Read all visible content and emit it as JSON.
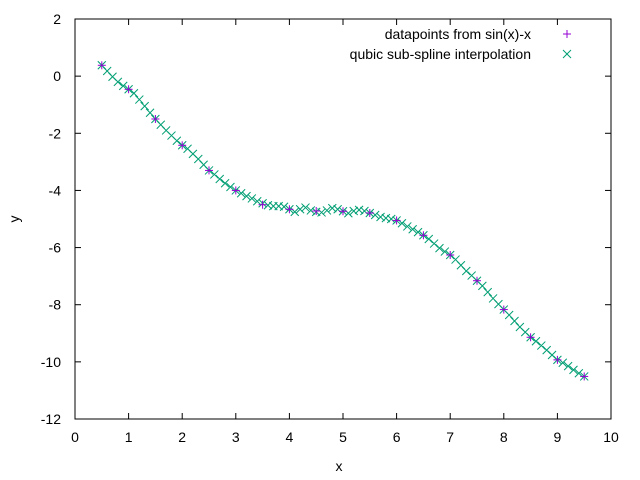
{
  "chart_data": {
    "type": "scatter",
    "title": "",
    "xlabel": "x",
    "ylabel": "y",
    "xlim": [
      0,
      10
    ],
    "ylim": [
      -12,
      2
    ],
    "xticks": [
      "0",
      "1",
      "2",
      "3",
      "4",
      "5",
      "6",
      "7",
      "8",
      "9",
      "10"
    ],
    "yticks": [
      "2",
      "0",
      "-2",
      "-4",
      "-6",
      "-8",
      "-10",
      "-12"
    ],
    "grid": false,
    "legend_position": "top-right",
    "series": [
      {
        "name": "datapoints from sin(x)-x",
        "marker": "plus",
        "color": "#9400d3",
        "x": [
          0.5,
          1.0,
          1.5,
          2.0,
          2.5,
          3.0,
          3.5,
          4.0,
          4.5,
          5.0,
          5.5,
          6.0,
          6.5,
          7.0,
          7.5,
          8.0,
          8.5,
          9.0,
          9.5
        ],
        "y": [
          0.38,
          -0.46,
          -1.5,
          -2.42,
          -3.3,
          -4.0,
          -4.5,
          -4.66,
          -4.72,
          -4.73,
          -4.79,
          -5.05,
          -5.57,
          -6.26,
          -7.16,
          -8.17,
          -9.14,
          -9.93,
          -10.51
        ]
      },
      {
        "name": "qubic sub-spline interpolation",
        "marker": "cross",
        "color": "#009e73",
        "x": [
          0.5,
          0.6,
          0.7,
          0.8,
          0.9,
          1.0,
          1.1,
          1.2,
          1.3,
          1.4,
          1.5,
          1.6,
          1.7,
          1.8,
          1.9,
          2.0,
          2.1,
          2.2,
          2.3,
          2.4,
          2.5,
          2.6,
          2.7,
          2.8,
          2.9,
          3.0,
          3.1,
          3.2,
          3.3,
          3.4,
          3.5,
          3.6,
          3.7,
          3.8,
          3.9,
          4.0,
          4.1,
          4.2,
          4.3,
          4.4,
          4.5,
          4.6,
          4.7,
          4.8,
          4.9,
          5.0,
          5.1,
          5.2,
          5.3,
          5.4,
          5.5,
          5.6,
          5.7,
          5.8,
          5.9,
          6.0,
          6.1,
          6.2,
          6.3,
          6.4,
          6.5,
          6.6,
          6.7,
          6.8,
          6.9,
          7.0,
          7.1,
          7.2,
          7.3,
          7.4,
          7.5,
          7.6,
          7.7,
          7.8,
          7.9,
          8.0,
          8.1,
          8.2,
          8.3,
          8.4,
          8.5,
          8.6,
          8.7,
          8.8,
          8.9,
          9.0,
          9.1,
          9.2,
          9.3,
          9.4,
          9.5
        ],
        "y": [
          0.38,
          0.18,
          -0.02,
          -0.2,
          -0.34,
          -0.46,
          -0.6,
          -0.82,
          -1.05,
          -1.28,
          -1.5,
          -1.7,
          -1.9,
          -2.08,
          -2.26,
          -2.42,
          -2.54,
          -2.72,
          -2.9,
          -3.1,
          -3.3,
          -3.44,
          -3.6,
          -3.75,
          -3.88,
          -4.0,
          -4.1,
          -4.2,
          -4.28,
          -4.38,
          -4.45,
          -4.52,
          -4.55,
          -4.55,
          -4.57,
          -4.66,
          -4.75,
          -4.66,
          -4.6,
          -4.7,
          -4.75,
          -4.77,
          -4.7,
          -4.62,
          -4.66,
          -4.73,
          -4.8,
          -4.72,
          -4.68,
          -4.72,
          -4.79,
          -4.86,
          -4.93,
          -4.97,
          -5.0,
          -5.05,
          -5.15,
          -5.26,
          -5.36,
          -5.46,
          -5.57,
          -5.7,
          -5.86,
          -6.02,
          -6.14,
          -6.26,
          -6.42,
          -6.62,
          -6.82,
          -6.98,
          -7.16,
          -7.34,
          -7.56,
          -7.78,
          -7.98,
          -8.17,
          -8.36,
          -8.57,
          -8.78,
          -8.96,
          -9.14,
          -9.28,
          -9.43,
          -9.59,
          -9.76,
          -9.93,
          -10.03,
          -10.15,
          -10.28,
          -10.4,
          -10.51
        ]
      }
    ]
  }
}
